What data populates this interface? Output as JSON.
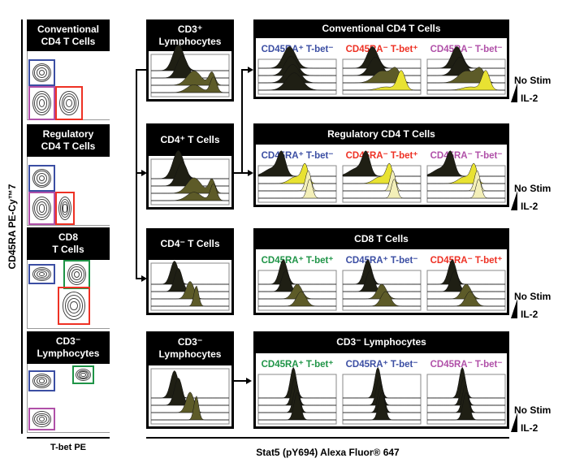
{
  "y_axis_label": "CD45RA PE-Cy™7",
  "x_axis_label_left": "T-bet PE",
  "x_axis_label_main": "Stat5 (pY694) Alexa Fluor® 647",
  "gate_colors": {
    "blue": "#3b4ea3",
    "red": "#ee3124",
    "magenta": "#b050a8",
    "green": "#1f9447"
  },
  "fill_colors": {
    "dark": "#1f1f14",
    "olive": "#5d5b28",
    "yellow": "#e8e232",
    "pale": "#f3efb8"
  },
  "left_panels": [
    {
      "title": "Conventional\nCD4 T Cells"
    },
    {
      "title": "Regulatory\nCD4 T Cells"
    },
    {
      "title": "CD8\nT Cells"
    },
    {
      "title": "CD3⁻\nLymphocytes"
    }
  ],
  "middle_panels": [
    {
      "title": "CD3⁺\nLymphocytes"
    },
    {
      "title": "CD4⁺ T Cells"
    },
    {
      "title": "CD4⁻ T Cells"
    },
    {
      "title": "CD3⁻\nLymphocytes"
    }
  ],
  "right_panels": [
    {
      "title": "Conventional CD4 T Cells",
      "subsets": [
        {
          "label": "CD45RA⁺ T-bet⁻",
          "color": "blue"
        },
        {
          "label": "CD45RA⁻ T-bet⁺",
          "color": "red"
        },
        {
          "label": "CD45RA⁻ T-bet⁻",
          "color": "magenta"
        }
      ]
    },
    {
      "title": "Regulatory CD4 T Cells",
      "subsets": [
        {
          "label": "CD45RA⁺ T-bet⁻",
          "color": "blue"
        },
        {
          "label": "CD45RA⁻ T-bet⁺",
          "color": "red"
        },
        {
          "label": "CD45RA⁻ T-bet⁻",
          "color": "magenta"
        }
      ]
    },
    {
      "title": "CD8 T Cells",
      "subsets": [
        {
          "label": "CD45RA⁺ T-bet⁺",
          "color": "green"
        },
        {
          "label": "CD45RA⁺ T-bet⁻",
          "color": "blue"
        },
        {
          "label": "CD45RA⁻ T-bet⁺",
          "color": "red"
        }
      ]
    },
    {
      "title": "CD3⁻ Lymphocytes",
      "subsets": [
        {
          "label": "CD45RA⁺ T-bet⁺",
          "color": "green"
        },
        {
          "label": "CD45RA⁺ T-bet⁻",
          "color": "blue"
        },
        {
          "label": "CD45RA⁻ T-bet⁻",
          "color": "magenta"
        }
      ]
    }
  ],
  "stim_labels": {
    "top": "No Stim",
    "bottom": "IL-2"
  }
}
